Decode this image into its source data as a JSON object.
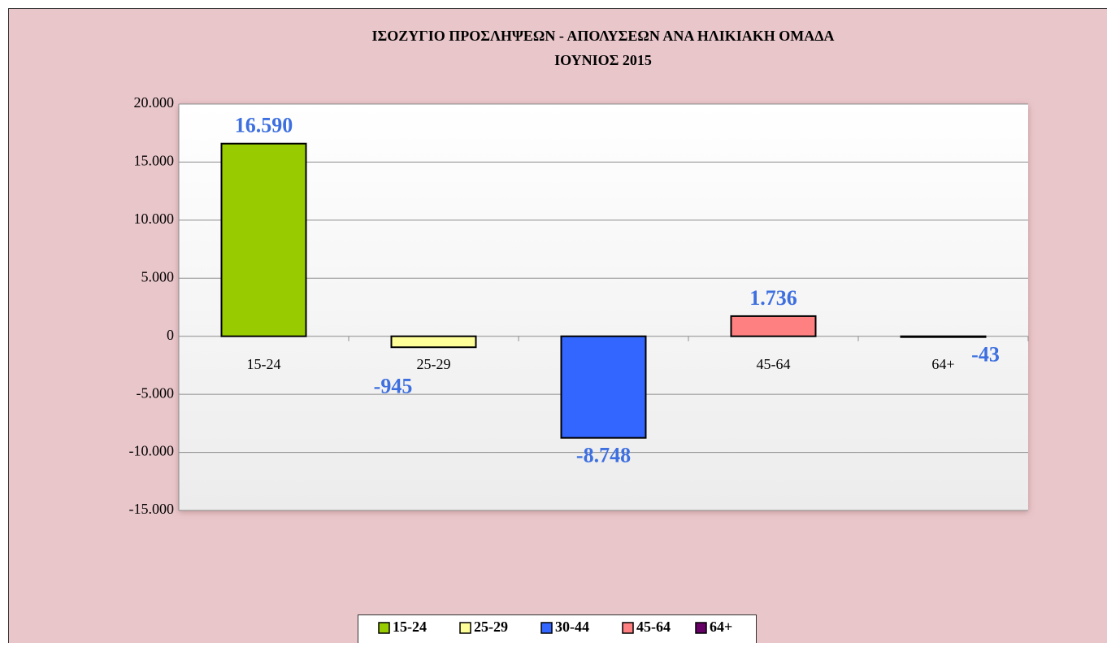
{
  "chart_data": {
    "type": "bar",
    "title": "ΙΣΟΖΥΓΙΟ ΠΡΟΣΛΗΨΕΩΝ - ΑΠΟΛΥΣΕΩΝ ΑΝΑ ΗΛΙΚΙΑΚΗ ΟΜΑΔΑ",
    "subtitle": "ΙΟΥΝΙΟΣ  2015",
    "categories": [
      "15-24",
      "25-29",
      "30-44",
      "45-64",
      "64+"
    ],
    "values": [
      16590,
      -945,
      -8748,
      1736,
      -43
    ],
    "value_labels": [
      "16.590",
      "-945",
      "-8.748",
      "1.736",
      "-43"
    ],
    "colors": [
      "#99cc00",
      "#ffff99",
      "#3366ff",
      "#ff8080",
      "#660066"
    ],
    "ylim": [
      -15000,
      20000
    ],
    "yticks": [
      {
        "value": -15000,
        "label": "-15.000"
      },
      {
        "value": -10000,
        "label": "-10.000"
      },
      {
        "value": -5000,
        "label": "-5.000"
      },
      0,
      {
        "value": 5000,
        "label": "5.000"
      },
      {
        "value": 10000,
        "label": "10.000"
      },
      {
        "value": 15000,
        "label": "15.000"
      },
      {
        "value": 20000,
        "label": "20.000"
      }
    ],
    "grid": true,
    "legend": "bottom"
  }
}
